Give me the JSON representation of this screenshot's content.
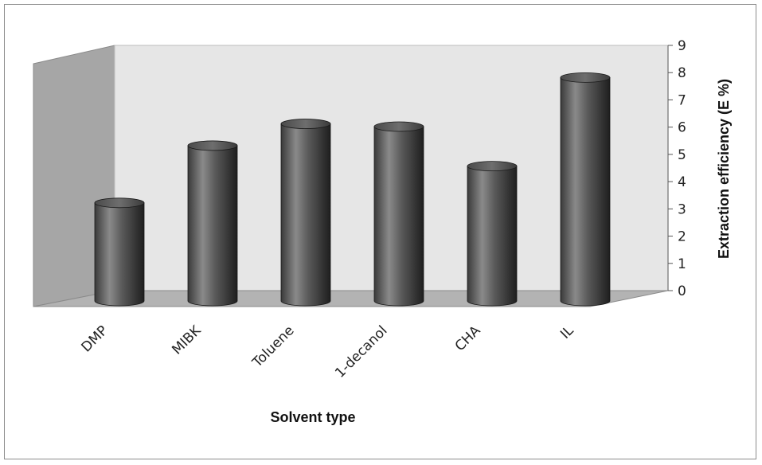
{
  "chart_data": {
    "type": "bar",
    "style": "3d-cylinder",
    "categories": [
      "DMP",
      "MIBK",
      "Toluene",
      "1-decanol",
      "CHA",
      "IL"
    ],
    "values": [
      3.6,
      5.7,
      6.5,
      6.4,
      4.95,
      8.2
    ],
    "xlabel": "Solvent type",
    "ylabel": "Extraction efficiency (E %)",
    "ylim": [
      0,
      9
    ],
    "yticks": [
      0,
      1,
      2,
      3,
      4,
      5,
      6,
      7,
      8,
      9
    ],
    "y_axis_side": "right",
    "grid": false,
    "legend": "none",
    "colors": {
      "back_wall": "#e6e6e6",
      "side_wall": "#a6a6a6",
      "floor": "#b3b3b3",
      "bar_dark": "#2a2a2a",
      "bar_light": "#8a8a8a"
    }
  }
}
